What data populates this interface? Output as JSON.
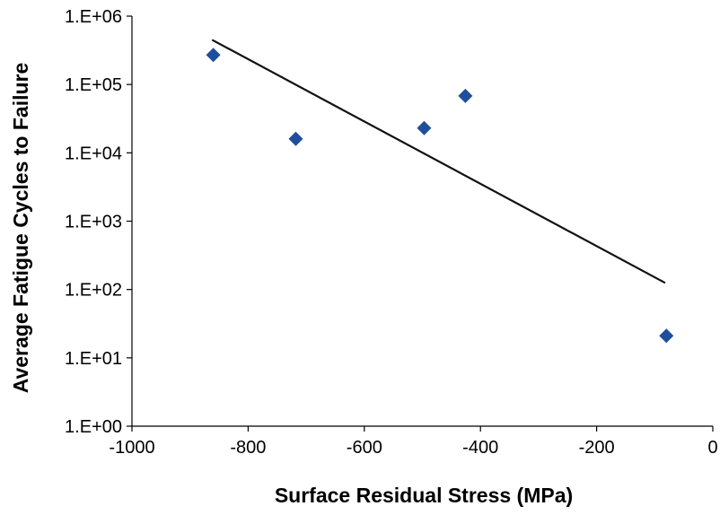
{
  "chart_data": {
    "type": "scatter",
    "title": "",
    "xlabel": "Surface Residual Stress (MPa)",
    "ylabel": "Average Fatigue Cycles to Failure",
    "xlim": [
      -1000,
      0
    ],
    "ylim": [
      1,
      1000000
    ],
    "y_scale": "log",
    "grid": false,
    "legend": "none",
    "x_ticks": [
      {
        "value": -1000,
        "label": "-1000"
      },
      {
        "value": -800,
        "label": "-800"
      },
      {
        "value": -600,
        "label": "-600"
      },
      {
        "value": -400,
        "label": "-400"
      },
      {
        "value": -200,
        "label": "-200"
      },
      {
        "value": 0,
        "label": "0"
      }
    ],
    "y_ticks": [
      {
        "value": 1,
        "label": "1.E+00"
      },
      {
        "value": 10,
        "label": "1.E+01"
      },
      {
        "value": 100,
        "label": "1.E+02"
      },
      {
        "value": 1000,
        "label": "1.E+03"
      },
      {
        "value": 10000,
        "label": "1.E+04"
      },
      {
        "value": 100000,
        "label": "1.E+05"
      },
      {
        "value": 1000000,
        "label": "1.E+06"
      }
    ],
    "series": [
      {
        "marker": "diamond",
        "color": "#1f4e9c",
        "points": [
          {
            "x": -860,
            "y": 270000
          },
          {
            "x": -718,
            "y": 16000
          },
          {
            "x": -497,
            "y": 23000
          },
          {
            "x": -426,
            "y": 68000
          },
          {
            "x": -80,
            "y": 21
          }
        ]
      }
    ],
    "trendline": {
      "color": "#111111",
      "points": [
        {
          "x": -862,
          "y": 450000
        },
        {
          "x": -82,
          "y": 125
        }
      ]
    }
  }
}
